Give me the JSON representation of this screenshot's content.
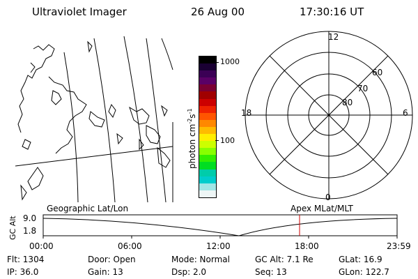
{
  "header": {
    "instrument": "Ultraviolet Imager",
    "date": "26 Aug 00",
    "time": "17:30:16 UT"
  },
  "colorbar": {
    "label_main": "photon cm",
    "label_sup1": "-2",
    "label_mid": "s",
    "label_sup2": "-1",
    "tick_high": "1000",
    "tick_low": "100",
    "colors": [
      "#000000",
      "#1a0033",
      "#3b0055",
      "#5a0066",
      "#7a0033",
      "#a00000",
      "#cc0000",
      "#ee2200",
      "#ff5500",
      "#ff8800",
      "#ffbb00",
      "#ffee00",
      "#ccff00",
      "#88ff00",
      "#33ee00",
      "#00dd22",
      "#00ccaa",
      "#00cccc",
      "#a0e6e6",
      "#eef6f6"
    ]
  },
  "polar": {
    "mlt_top": "12",
    "mlt_left": "18",
    "mlt_right": "6",
    "mlt_bottom": "0",
    "lat_60": "60",
    "lat_70": "70",
    "lat_80": "80"
  },
  "timeline": {
    "ylabel": "GC Alt",
    "y_top": "9.0",
    "y_bottom": "1.8",
    "left_title": "Geographic Lat/Lon",
    "right_title": "Apex MLat/MLT",
    "ticks": [
      "00:00",
      "06:00",
      "12:00",
      "18:00",
      "23:59"
    ],
    "current_time_color": "#cc0000"
  },
  "footer": {
    "flt": "Flt: 1304",
    "door": "Door: Open",
    "mode": "Mode: Normal",
    "gcalt": "GC Alt: 7.1 Re",
    "glat": "GLat:  16.9",
    "ip": "IP: 36.0",
    "gain": "Gain: 13",
    "dsp": "Dsp:     2.0",
    "seq": "Seq: 13",
    "glon": "GLon: 122.7"
  }
}
